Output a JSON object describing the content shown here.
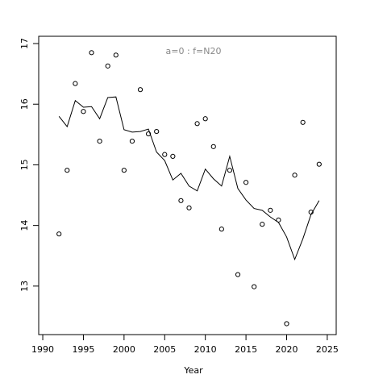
{
  "chart_data": {
    "type": "scatter",
    "annotation": "a=0  :  f=N20",
    "xlabel": "Year",
    "x": [
      1992,
      1993,
      1994,
      1995,
      1996,
      1997,
      1998,
      1999,
      2000,
      2001,
      2002,
      2003,
      2004,
      2005,
      2006,
      2007,
      2008,
      2009,
      2010,
      2011,
      2012,
      2013,
      2014,
      2015,
      2016,
      2017,
      2018,
      2019,
      2020,
      2021,
      2022,
      2023,
      2024
    ],
    "series": [
      {
        "style": "points",
        "color": "#000000",
        "values": [
          13.86,
          14.91,
          16.34,
          15.88,
          16.85,
          15.39,
          16.63,
          16.81,
          14.91,
          15.39,
          16.24,
          15.51,
          15.55,
          15.17,
          15.14,
          14.41,
          14.29,
          15.68,
          15.76,
          15.3,
          13.94,
          14.91,
          13.19,
          14.71,
          12.99,
          14.02,
          14.25,
          14.09,
          12.38,
          14.83,
          15.7,
          14.22,
          15.01
        ]
      },
      {
        "style": "line",
        "color": "#000000",
        "values": [
          15.8,
          15.63,
          16.06,
          15.95,
          15.96,
          15.76,
          16.11,
          16.12,
          15.58,
          15.54,
          15.55,
          15.59,
          15.21,
          15.07,
          14.75,
          14.86,
          14.65,
          14.57,
          14.93,
          14.77,
          14.65,
          15.14,
          14.61,
          14.42,
          14.28,
          14.25,
          14.14,
          14.05,
          13.81,
          13.44,
          13.78,
          14.18,
          14.41
        ]
      }
    ],
    "xlim": [
      1989.5,
      2026.1
    ],
    "ylim": [
      12.2,
      17.12
    ],
    "xticks": [
      1990,
      1995,
      2000,
      2005,
      2010,
      2015,
      2020,
      2025
    ],
    "yticks": [
      13,
      14,
      15,
      16,
      17
    ]
  }
}
